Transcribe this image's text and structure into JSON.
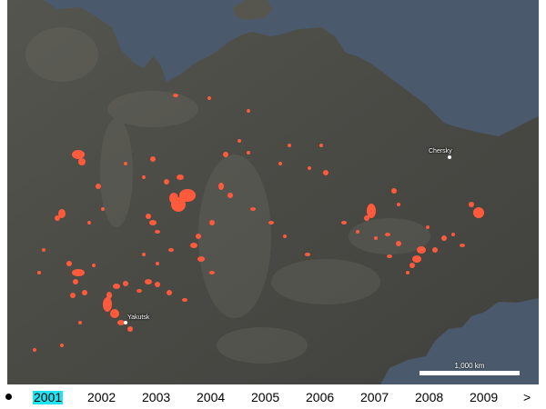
{
  "map": {
    "colors": {
      "ocean": "#4a5a6c",
      "land": "#4b4b45",
      "land_light": "#6d6d66",
      "fire": "#ff5a3c",
      "label": "#ffffff"
    },
    "places": [
      {
        "name": "Chersky",
        "icon": "city-dot"
      },
      {
        "name": "Yakutsk",
        "icon": "city-dot"
      }
    ],
    "scale_label": "1,000 km"
  },
  "timeline": {
    "years": [
      "2001",
      "2002",
      "2003",
      "2004",
      "2005",
      "2006",
      "2007",
      "2008",
      "2009"
    ],
    "selected": "2001",
    "next_label": ">",
    "bullet_icon": "bullet-icon"
  }
}
